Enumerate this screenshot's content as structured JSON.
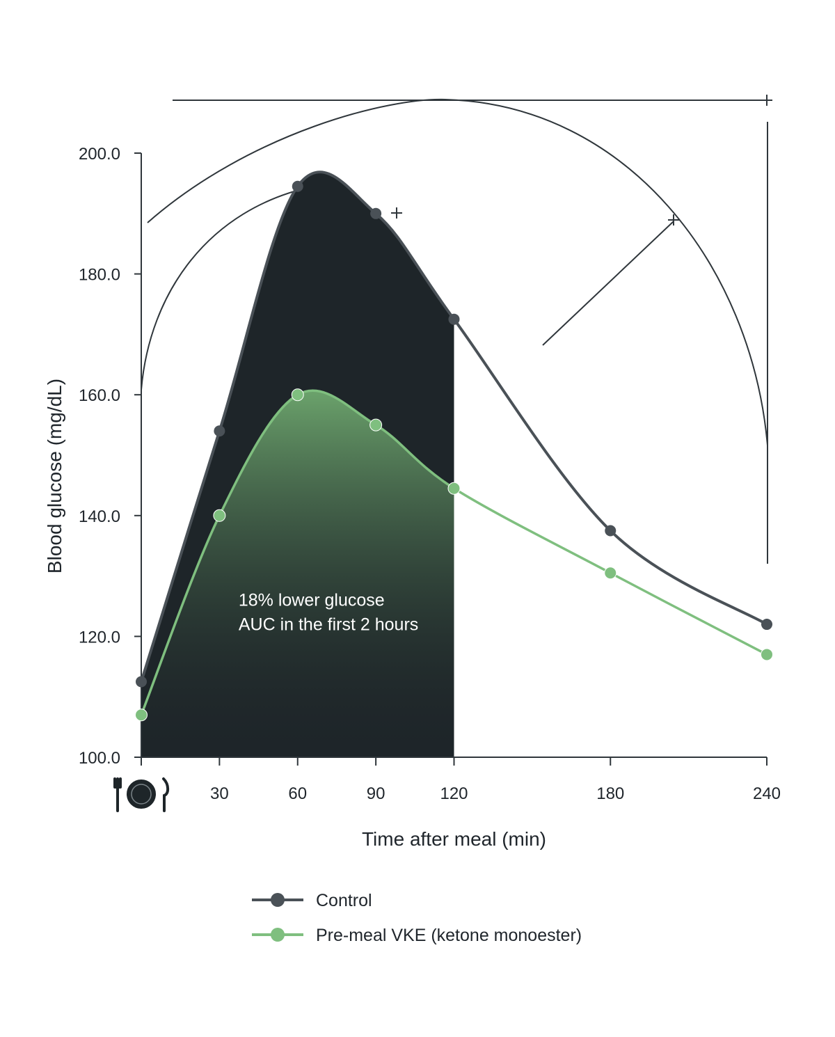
{
  "chart_data": {
    "type": "line",
    "x": [
      0,
      30,
      60,
      90,
      120,
      180,
      240
    ],
    "xlabel": "Time after meal (min)",
    "ylabel": "Blood glucose (mg/dL)",
    "xlim": [
      0,
      240
    ],
    "ylim": [
      100,
      200
    ],
    "yticks": [
      100,
      120,
      140,
      160,
      180,
      200
    ],
    "xtick_labels": [
      "30",
      "60",
      "90",
      "120",
      "180",
      "240"
    ],
    "xtick_values": [
      30,
      60,
      90,
      120,
      180,
      240
    ],
    "zero_tick_icon": "plate-with-fork-and-knife-icon",
    "grid": false,
    "legend_position": "bottom",
    "shaded_region": {
      "x_from": 0,
      "x_to": 120
    },
    "annotation": {
      "lines": [
        "18% lower glucose",
        "AUC in the first 2 hours"
      ],
      "x": 36,
      "y": 121
    },
    "series": [
      {
        "name": "Control",
        "color": "#4a5157",
        "values": [
          112.5,
          154,
          194.5,
          190,
          172.5,
          137.5,
          122
        ]
      },
      {
        "name": "Pre-meal VKE (ketone monoester)",
        "color": "#7fbf7f",
        "values": [
          107,
          140,
          160,
          155,
          144.5,
          130.5,
          117
        ]
      }
    ]
  }
}
